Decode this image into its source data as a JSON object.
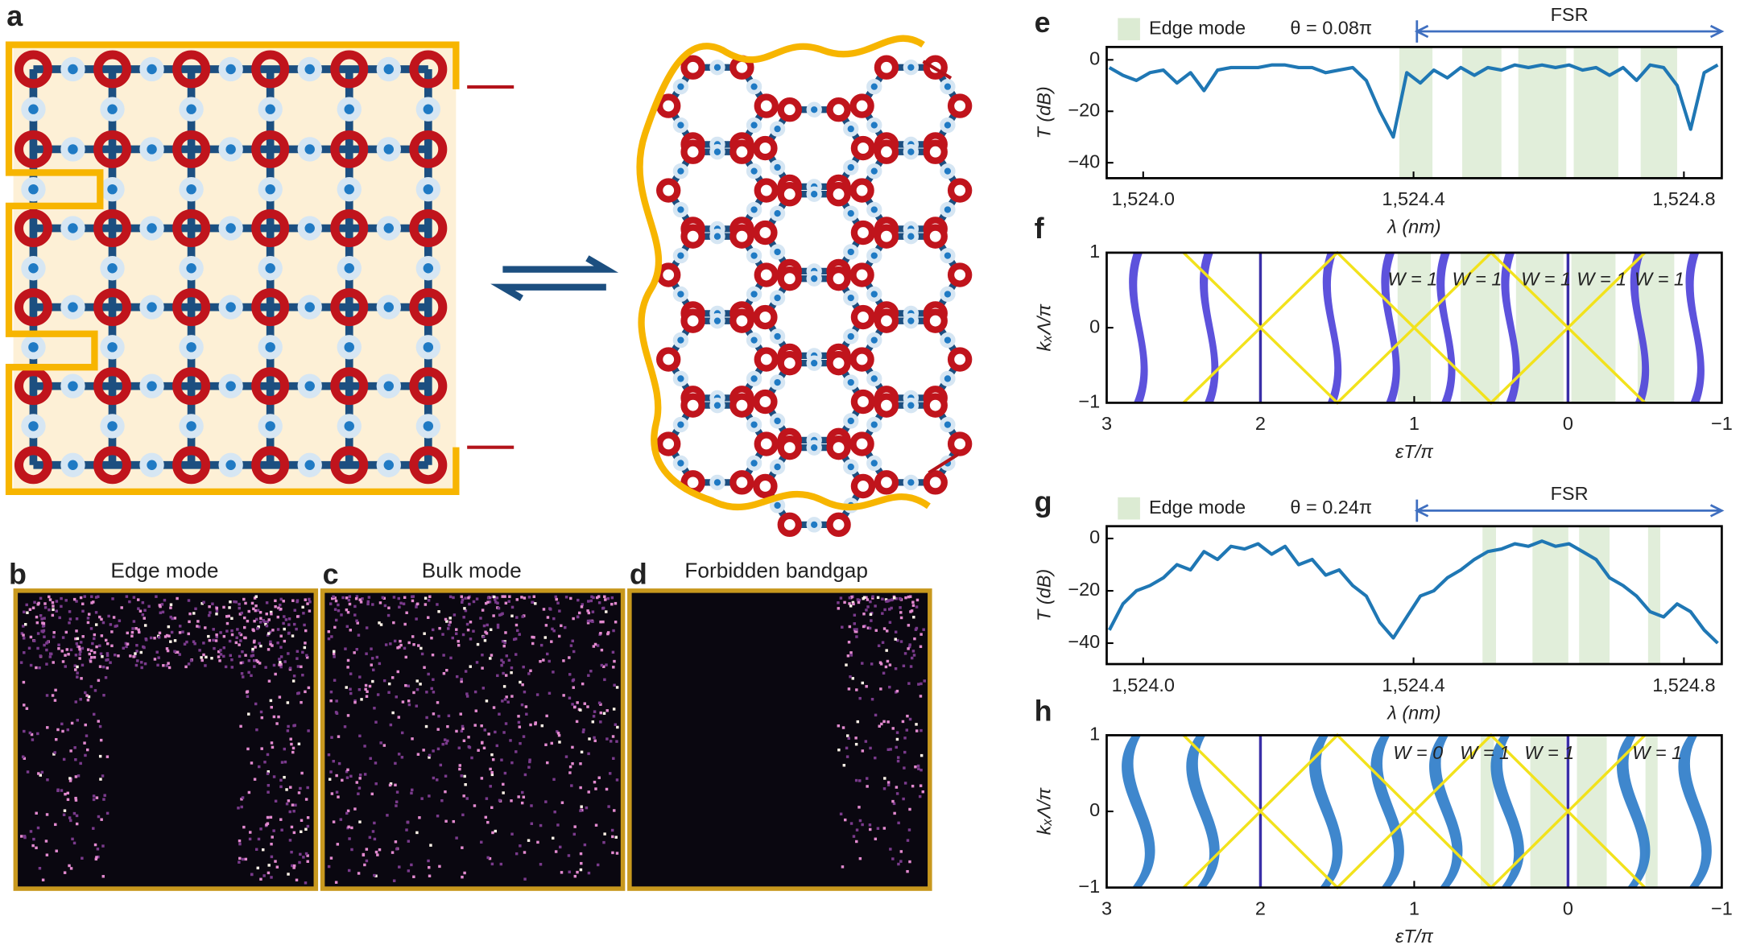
{
  "panels": {
    "a": "a",
    "b": "b",
    "c": "c",
    "d": "d"
  },
  "titles": {
    "b": "Edge mode",
    "c": "Bulk mode",
    "d": "Forbidden bandgap"
  },
  "chart_data": [
    {
      "type": "line",
      "label": "e",
      "legend": "Edge mode",
      "theta": "θ = 0.08π",
      "fsr_label": "FSR",
      "fsr": [
        1524.405,
        1524.856
      ],
      "color": "#1f77b4",
      "band_color": "#dcebd3",
      "xlabel": "λ (nm)",
      "ylabel": "T (dB)",
      "xlim": [
        1523.946,
        1524.856
      ],
      "ylim": [
        -46,
        5
      ],
      "xticks": [
        {
          "value": 1524.0,
          "label": "1,524.0"
        },
        {
          "value": 1524.4,
          "label": "1,524.4"
        },
        {
          "value": 1524.8,
          "label": "1,524.8"
        }
      ],
      "yticks": [
        0,
        {
          "value": -20,
          "label": "−20"
        },
        {
          "value": -40,
          "label": "−40"
        }
      ],
      "bands": [
        [
          1524.379,
          1524.428
        ],
        [
          1524.472,
          1524.53
        ],
        [
          1524.555,
          1524.626
        ],
        [
          1524.637,
          1524.703
        ],
        [
          1524.736,
          1524.79
        ]
      ],
      "x": [
        1523.95,
        1523.97,
        1523.99,
        1524.01,
        1524.03,
        1524.05,
        1524.07,
        1524.09,
        1524.11,
        1524.13,
        1524.15,
        1524.17,
        1524.19,
        1524.21,
        1524.23,
        1524.25,
        1524.27,
        1524.29,
        1524.31,
        1524.33,
        1524.35,
        1524.37,
        1524.39,
        1524.41,
        1524.43,
        1524.45,
        1524.47,
        1524.49,
        1524.51,
        1524.53,
        1524.55,
        1524.57,
        1524.59,
        1524.61,
        1524.63,
        1524.65,
        1524.67,
        1524.69,
        1524.71,
        1524.73,
        1524.75,
        1524.77,
        1524.79,
        1524.81,
        1524.83,
        1524.85
      ],
      "values": [
        -3,
        -6,
        -8,
        -5,
        -4,
        -9,
        -5,
        -12,
        -4,
        -3,
        -3,
        -3,
        -2,
        -2,
        -3,
        -3,
        -5,
        -4,
        -3,
        -8,
        -20,
        -30,
        -5,
        -9,
        -4,
        -7,
        -3,
        -6,
        -3,
        -4,
        -2,
        -3,
        -2,
        -3,
        -2,
        -4,
        -3,
        -6,
        -3,
        -8,
        -2,
        -3,
        -10,
        -27,
        -5,
        -2
      ]
    },
    {
      "type": "band",
      "label": "f",
      "xlabel": "εT/π",
      "ylabel": "kₓΛ/π",
      "band_color": "#dcebd3",
      "xlim": [
        3,
        -1
      ],
      "ylim": [
        -1,
        1
      ],
      "xticks": [
        3,
        2,
        1,
        0,
        {
          "value": -1,
          "label": "−1"
        }
      ],
      "yticks": [
        {
          "value": -1,
          "label": "−1"
        },
        0,
        1
      ],
      "bands": [
        [
          1.108,
          0.892
        ],
        [
          0.698,
          0.446
        ],
        [
          0.338,
          0.029
        ],
        [
          -0.022,
          -0.309
        ],
        [
          -0.453,
          -0.691
        ]
      ],
      "annotations": [
        "W = 1",
        "W = 1",
        "W = 1",
        "W = 1",
        "W = 1"
      ],
      "lines_x": [
        2,
        0
      ],
      "lobes_x": [
        2.81,
        2.35,
        1.55,
        1.17,
        0.81,
        0.39,
        -0.45,
        -0.81
      ],
      "series": [
        {
          "color": "#f2e21c",
          "x": [
            2.5,
            1.5,
            0.5,
            -0.5
          ],
          "values": [
            1,
            -1,
            1,
            -1
          ]
        },
        {
          "color": "#f2e21c",
          "x": [
            2.5,
            1.5,
            0.5,
            -0.5
          ],
          "values": [
            -1,
            1,
            -1,
            1
          ]
        }
      ]
    },
    {
      "type": "line",
      "label": "g",
      "legend": "Edge mode",
      "theta": "θ = 0.24π",
      "fsr_label": "FSR",
      "fsr": [
        1524.405,
        1524.856
      ],
      "color": "#1f77b4",
      "band_color": "#dcebd3",
      "xlabel": "λ (nm)",
      "ylabel": "T (dB)",
      "xlim": [
        1523.946,
        1524.856
      ],
      "ylim": [
        -48,
        4.7
      ],
      "xticks": [
        {
          "value": 1524.0,
          "label": "1,524.0"
        },
        {
          "value": 1524.4,
          "label": "1,524.4"
        },
        {
          "value": 1524.8,
          "label": "1,524.8"
        }
      ],
      "yticks": [
        0,
        {
          "value": -20,
          "label": "−20"
        },
        {
          "value": -40,
          "label": "−40"
        }
      ],
      "bands": [
        [
          1524.502,
          1524.522
        ],
        [
          1524.576,
          1524.629
        ],
        [
          1524.645,
          1524.69
        ],
        [
          1524.747,
          1524.765
        ]
      ],
      "x": [
        1523.95,
        1523.97,
        1523.99,
        1524.01,
        1524.03,
        1524.05,
        1524.07,
        1524.09,
        1524.11,
        1524.13,
        1524.15,
        1524.17,
        1524.19,
        1524.21,
        1524.23,
        1524.25,
        1524.27,
        1524.29,
        1524.31,
        1524.33,
        1524.35,
        1524.37,
        1524.39,
        1524.41,
        1524.43,
        1524.45,
        1524.47,
        1524.49,
        1524.51,
        1524.53,
        1524.55,
        1524.57,
        1524.59,
        1524.61,
        1524.63,
        1524.65,
        1524.67,
        1524.69,
        1524.71,
        1524.73,
        1524.75,
        1524.77,
        1524.79,
        1524.81,
        1524.83,
        1524.85
      ],
      "values": [
        -35,
        -25,
        -20,
        -18,
        -15,
        -10,
        -12,
        -5,
        -8,
        -3,
        -4,
        -2,
        -6,
        -3,
        -10,
        -8,
        -14,
        -12,
        -18,
        -22,
        -32,
        -38,
        -30,
        -22,
        -20,
        -15,
        -12,
        -8,
        -5,
        -4,
        -2,
        -3,
        -1,
        -3,
        -2,
        -5,
        -8,
        -15,
        -18,
        -22,
        -28,
        -30,
        -25,
        -28,
        -35,
        -40
      ]
    },
    {
      "type": "band",
      "label": "h",
      "xlabel": "εT/π",
      "ylabel": "kₓΛ/π",
      "band_color": "#dcebd3",
      "xlim": [
        3,
        -1
      ],
      "ylim": [
        -1,
        1
      ],
      "xticks": [
        3,
        2,
        1,
        0,
        {
          "value": -1,
          "label": "−1"
        }
      ],
      "yticks": [
        {
          "value": -1,
          "label": "−1"
        },
        0,
        1
      ],
      "bands": [
        [
          0.568,
          0.482
        ],
        [
          0.245,
          0.014
        ],
        [
          -0.058,
          -0.252
        ],
        [
          -0.504,
          -0.583
        ]
      ],
      "annotations": [
        "W = 0",
        "W = 1",
        "W = 1",
        "W = 1"
      ],
      "lines_x": [
        2,
        0
      ],
      "lobes_x": [
        2.82,
        2.4,
        1.6,
        1.2,
        0.82,
        0.42,
        -0.4,
        -0.8
      ],
      "series": [
        {
          "color": "#f2e21c",
          "x": [
            2.5,
            1.5,
            0.5,
            -0.5
          ],
          "values": [
            1,
            -1,
            1,
            -1
          ]
        },
        {
          "color": "#f2e21c",
          "x": [
            2.5,
            1.5,
            0.5,
            -0.5
          ],
          "values": [
            -1,
            1,
            -1,
            1
          ]
        }
      ]
    }
  ]
}
